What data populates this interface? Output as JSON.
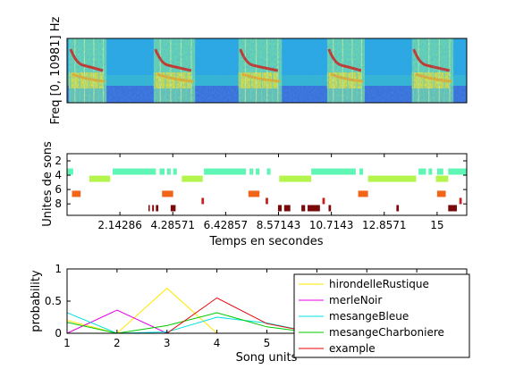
{
  "chart_data": [
    {
      "type": "heatmap",
      "ylabel": "Freq [0, 10981] Hz",
      "calls": [
        {
          "t": 0.0,
          "w": 1.0
        },
        {
          "t": 2.25,
          "w": 1.1
        },
        {
          "t": 4.5,
          "w": 1.15
        },
        {
          "t": 6.85,
          "w": 1.0
        },
        {
          "t": 9.1,
          "w": 1.1
        }
      ]
    },
    {
      "type": "scatter",
      "ylabel": "Unites de sons",
      "xlabel": "Temps en secondes",
      "xlim": [
        0,
        16.2
      ],
      "ylim": [
        1,
        9.6
      ],
      "x_ticks": [
        {
          "v": 2.14286,
          "label": "2.14286"
        },
        {
          "v": 4.28571,
          "label": "4.28571"
        },
        {
          "v": 6.42857,
          "label": "6.42857"
        },
        {
          "v": 8.57143,
          "label": "8.57143"
        },
        {
          "v": 10.7143,
          "label": "10.7143"
        },
        {
          "v": 12.8571,
          "label": "12.8571"
        },
        {
          "v": 15,
          "label": "15"
        }
      ],
      "y_ticks": [
        {
          "v": 2,
          "label": "2"
        },
        {
          "v": 4,
          "label": "4"
        },
        {
          "v": 6,
          "label": "6"
        },
        {
          "v": 8,
          "label": "8"
        }
      ],
      "rows": [
        {
          "unit": 3.5,
          "color": "#5ff5b5",
          "segments": [
            [
              0.0,
              0.25
            ],
            [
              1.85,
              3.6
            ],
            [
              3.75,
              3.95
            ],
            [
              4.05,
              4.2
            ],
            [
              4.3,
              4.45
            ],
            [
              5.55,
              7.25
            ],
            [
              7.4,
              7.55
            ],
            [
              7.65,
              7.8
            ],
            [
              8.1,
              8.25
            ],
            [
              9.9,
              11.7
            ],
            [
              11.85,
              12.0
            ],
            [
              14.25,
              14.55
            ],
            [
              14.65,
              14.8
            ],
            [
              15.0,
              15.25
            ],
            [
              15.45,
              16.2
            ]
          ]
        },
        {
          "unit": 4.5,
          "color": "#b3f54d",
          "segments": [
            [
              0.9,
              1.75
            ],
            [
              4.65,
              5.5
            ],
            [
              8.6,
              9.9
            ],
            [
              12.2,
              14.15
            ],
            [
              14.95,
              15.45
            ]
          ]
        },
        {
          "unit": 6.6,
          "color": "#f26418",
          "segments": [
            [
              0.2,
              0.55
            ],
            [
              3.85,
              4.3
            ],
            [
              7.35,
              7.8
            ],
            [
              11.8,
              12.2
            ],
            [
              15.0,
              15.35
            ]
          ]
        },
        {
          "unit": 7.6,
          "color": "#c42020",
          "segments": [
            [
              5.45,
              5.55
            ],
            [
              8.05,
              8.15
            ],
            [
              10.35,
              10.45
            ],
            [
              15.9,
              16.0
            ]
          ]
        },
        {
          "unit": 8.6,
          "color": "#7a0a0a",
          "segments": [
            [
              3.3,
              3.35
            ],
            [
              3.45,
              3.52
            ],
            [
              3.6,
              3.7
            ],
            [
              4.2,
              4.4
            ],
            [
              8.55,
              8.7
            ],
            [
              8.8,
              9.05
            ],
            [
              9.5,
              9.65
            ],
            [
              9.75,
              10.25
            ],
            [
              10.6,
              10.7
            ],
            [
              13.35,
              13.45
            ],
            [
              15.45,
              15.8
            ]
          ]
        }
      ]
    },
    {
      "type": "line",
      "xlabel": "Song units",
      "ylabel": "probability",
      "xlim": [
        1,
        9
      ],
      "ylim": [
        0,
        1
      ],
      "x_ticks": [
        1,
        2,
        3,
        4,
        5,
        6,
        7,
        8,
        9
      ],
      "y_ticks": [
        {
          "v": 0,
          "label": "0"
        },
        {
          "v": 0.5,
          "label": "0.5"
        },
        {
          "v": 1,
          "label": "1"
        }
      ],
      "x": [
        1,
        2,
        3,
        4,
        5,
        6,
        7,
        8,
        9
      ],
      "series": [
        {
          "name": "hirondelleRustique",
          "color": "#ffe700",
          "values": [
            0.2,
            0.0,
            0.7,
            0.0,
            0.0,
            0.0,
            0.0,
            0.0,
            0.0
          ]
        },
        {
          "name": "merleNoir",
          "color": "#e600e6",
          "values": [
            0.0,
            0.36,
            0.0,
            0.0,
            0.0,
            0.0,
            0.0,
            0.0,
            0.0
          ]
        },
        {
          "name": "mesangeBleue",
          "color": "#00e0e0",
          "values": [
            0.32,
            0.0,
            0.02,
            0.25,
            0.16,
            0.0,
            0.0,
            0.0,
            0.15
          ]
        },
        {
          "name": "mesangeCharboniere",
          "color": "#00c800",
          "values": [
            0.17,
            0.0,
            0.12,
            0.32,
            0.1,
            0.0,
            0.0,
            0.0,
            0.19
          ]
        },
        {
          "name": "example",
          "color": "#e60000",
          "values": [
            0.0,
            0.0,
            0.0,
            0.55,
            0.15,
            0.0,
            0.0,
            0.0,
            0.0
          ]
        }
      ]
    }
  ]
}
